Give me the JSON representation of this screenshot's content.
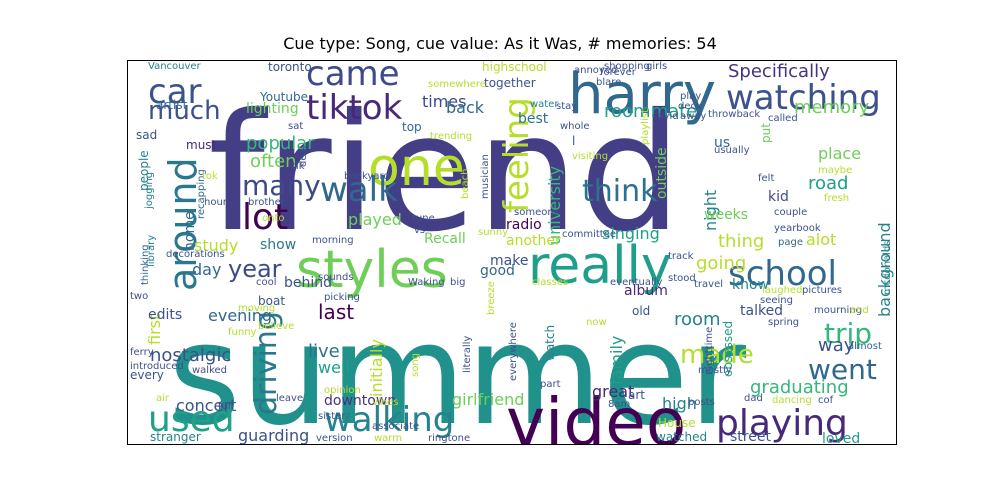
{
  "title": "Cue type: Song, cue value: As it Was, # memories: 54",
  "palette": {
    "dark_purple": "#440154",
    "indigo": "#3b528b",
    "slate_blue": "#433e85",
    "blue": "#31688e",
    "teal_blue": "#26828e",
    "teal": "#1f9e89",
    "green": "#35b779",
    "light_green": "#6ece58",
    "yellow_green": "#b5de2b",
    "yellow": "#fde725"
  },
  "words": [
    {
      "text": "friend",
      "color": "#433e85"
    },
    {
      "text": "summer",
      "color": "#21918c"
    },
    {
      "text": "harry",
      "color": "#31688e"
    },
    {
      "text": "video",
      "color": "#440154"
    },
    {
      "text": "styles",
      "color": "#6ece58"
    },
    {
      "text": "really",
      "color": "#1f9e89"
    },
    {
      "text": "one",
      "color": "#b5de2b"
    },
    {
      "text": "tiktok",
      "color": "#482878"
    },
    {
      "text": "came",
      "color": "#3e4a89"
    },
    {
      "text": "car",
      "color": "#3b528b"
    },
    {
      "text": "around",
      "color": "#2a788e"
    },
    {
      "text": "watching",
      "color": "#3b528b"
    },
    {
      "text": "school",
      "color": "#31688e"
    },
    {
      "text": "playing",
      "color": "#482878"
    },
    {
      "text": "walking",
      "color": "#26828e"
    },
    {
      "text": "used",
      "color": "#1fa187"
    },
    {
      "text": "lot",
      "color": "#440154"
    },
    {
      "text": "walk",
      "color": "#31688e"
    },
    {
      "text": "many",
      "color": "#3e4a89"
    },
    {
      "text": "much",
      "color": "#3b528b"
    },
    {
      "text": "feeling",
      "color": "#b5de2b"
    },
    {
      "text": "think",
      "color": "#2c728e"
    },
    {
      "text": "driving",
      "color": "#2a788e"
    },
    {
      "text": "year",
      "color": "#3e4a89"
    },
    {
      "text": "went",
      "color": "#31688e"
    },
    {
      "text": "made",
      "color": "#b5de2b"
    },
    {
      "text": "trip",
      "color": "#35b779"
    },
    {
      "text": "Specifically",
      "color": "#46327e"
    },
    {
      "text": "memory",
      "color": "#6ece58"
    },
    {
      "text": "roommate",
      "color": "#1f9e89"
    },
    {
      "text": "times",
      "color": "#3e4a89"
    },
    {
      "text": "back",
      "color": "#31688e"
    },
    {
      "text": "best",
      "color": "#2c728e"
    },
    {
      "text": "university",
      "color": "#35b779"
    },
    {
      "text": "outside",
      "color": "#6ece58"
    },
    {
      "text": "night",
      "color": "#26828e"
    },
    {
      "text": "weeks",
      "color": "#6ece58"
    },
    {
      "text": "popular",
      "color": "#35b779"
    },
    {
      "text": "often",
      "color": "#6ece58"
    },
    {
      "text": "played",
      "color": "#6ece58"
    },
    {
      "text": "study",
      "color": "#b5de2b"
    },
    {
      "text": "show",
      "color": "#2a788e"
    },
    {
      "text": "day",
      "color": "#31688e"
    },
    {
      "text": "last",
      "color": "#440154"
    },
    {
      "text": "behind",
      "color": "#3b528b"
    },
    {
      "text": "evening",
      "color": "#31688e"
    },
    {
      "text": "nostalgic",
      "color": "#3b528b"
    },
    {
      "text": "concert",
      "color": "#3b528b"
    },
    {
      "text": "live",
      "color": "#2c728e"
    },
    {
      "text": "well",
      "color": "#1f9e89"
    },
    {
      "text": "initially",
      "color": "#b5de2b"
    },
    {
      "text": "downtown",
      "color": "#46327e"
    },
    {
      "text": "guarding",
      "color": "#3b528b"
    },
    {
      "text": "girlfriend",
      "color": "#6ece58"
    },
    {
      "text": "family",
      "color": "#1f9e89"
    },
    {
      "text": "room",
      "color": "#26828e"
    },
    {
      "text": "album",
      "color": "#482878"
    },
    {
      "text": "going",
      "color": "#b5de2b"
    },
    {
      "text": "thing",
      "color": "#b5de2b"
    },
    {
      "text": "alot",
      "color": "#b5de2b"
    },
    {
      "text": "know",
      "color": "#26828e"
    },
    {
      "text": "talked",
      "color": "#3b528b"
    },
    {
      "text": "place",
      "color": "#6ece58"
    },
    {
      "text": "road",
      "color": "#1f9e89"
    },
    {
      "text": "kid",
      "color": "#3e4a89"
    },
    {
      "text": "way",
      "color": "#3b528b"
    },
    {
      "text": "graduating",
      "color": "#35b779"
    },
    {
      "text": "high",
      "color": "#26828e"
    },
    {
      "text": "great",
      "color": "#482878"
    },
    {
      "text": "street",
      "color": "#3b528b"
    },
    {
      "text": "loved",
      "color": "#1f9e89"
    },
    {
      "text": "background",
      "color": "#26828e"
    },
    {
      "text": "first",
      "color": "#b5de2b"
    },
    {
      "text": "edits",
      "color": "#3b528b"
    },
    {
      "text": "Recall",
      "color": "#6ece58"
    },
    {
      "text": "another",
      "color": "#b5de2b"
    },
    {
      "text": "singing",
      "color": "#1f9e89"
    },
    {
      "text": "make",
      "color": "#3b528b"
    },
    {
      "text": "good",
      "color": "#31688e"
    },
    {
      "text": "radio",
      "color": "#440154"
    },
    {
      "text": "home",
      "color": "#31688e"
    },
    {
      "text": "highschool",
      "color": "#b5de2b"
    },
    {
      "text": "together",
      "color": "#3b528b"
    },
    {
      "text": "toronto",
      "color": "#3b528b"
    },
    {
      "text": "artist",
      "color": "#31688e"
    },
    {
      "text": "lighting",
      "color": "#6ece58"
    },
    {
      "text": "Youtube",
      "color": "#31688e"
    },
    {
      "text": "must",
      "color": "#482878"
    },
    {
      "text": "sad",
      "color": "#3b528b"
    },
    {
      "text": "top",
      "color": "#31688e"
    },
    {
      "text": "us",
      "color": "#31688e"
    },
    {
      "text": "put",
      "color": "#6ece58"
    },
    {
      "text": "couple",
      "color": "#3b528b"
    },
    {
      "text": "yearbook",
      "color": "#3b528b"
    },
    {
      "text": "mourning",
      "color": "#3b528b"
    },
    {
      "text": "almost",
      "color": "#31688e"
    },
    {
      "text": "people",
      "color": "#26828e"
    },
    {
      "text": "recapping",
      "color": "#31688e"
    },
    {
      "text": "jogging",
      "color": "#26828e"
    },
    {
      "text": "library",
      "color": "#26828e"
    },
    {
      "text": "thinking",
      "color": "#31688e"
    },
    {
      "text": "decorations",
      "color": "#3b528b"
    },
    {
      "text": "cool",
      "color": "#3b528b"
    },
    {
      "text": "picking",
      "color": "#3b528b"
    },
    {
      "text": "sounds",
      "color": "#3b528b"
    },
    {
      "text": "Waking",
      "color": "#3b528b"
    },
    {
      "text": "boat",
      "color": "#3b528b"
    },
    {
      "text": "funny",
      "color": "#b5de2b"
    },
    {
      "text": "every",
      "color": "#3b528b"
    },
    {
      "text": "introduced",
      "color": "#3b528b"
    },
    {
      "text": "walked",
      "color": "#3b528b"
    },
    {
      "text": "stranger",
      "color": "#26828e"
    },
    {
      "text": "version",
      "color": "#3b528b"
    },
    {
      "text": "ringtone",
      "color": "#3b528b"
    },
    {
      "text": "House",
      "color": "#b5de2b"
    },
    {
      "text": "watched",
      "color": "#26828e"
    },
    {
      "text": "Vancouver",
      "color": "#26828e"
    },
    {
      "text": "morning",
      "color": "#3b528b"
    },
    {
      "text": "committee",
      "color": "#3b528b"
    },
    {
      "text": "eventually",
      "color": "#3b528b"
    },
    {
      "text": "classes",
      "color": "#b5de2b"
    },
    {
      "text": "tune",
      "color": "#3b528b"
    },
    {
      "text": "vs",
      "color": "#3b528b"
    },
    {
      "text": "someone",
      "color": "#3b528b"
    },
    {
      "text": "sunny",
      "color": "#b5de2b"
    },
    {
      "text": "travel",
      "color": "#3b528b"
    },
    {
      "text": "stood",
      "color": "#3b528b"
    },
    {
      "text": "track",
      "color": "#3b528b"
    },
    {
      "text": "page",
      "color": "#31688e"
    },
    {
      "text": "pictures",
      "color": "#3b528b"
    },
    {
      "text": "seeing",
      "color": "#3b528b"
    },
    {
      "text": "laughed",
      "color": "#b5de2b"
    },
    {
      "text": "spring",
      "color": "#3b528b"
    },
    {
      "text": "obsessed",
      "color": "#1f9e89"
    },
    {
      "text": "nighttime",
      "color": "#3b528b"
    },
    {
      "text": "mostly",
      "color": "#3b528b"
    },
    {
      "text": "part",
      "color": "#3b528b"
    },
    {
      "text": "literally",
      "color": "#3b528b"
    },
    {
      "text": "everywhere",
      "color": "#3b528b"
    },
    {
      "text": "breeze",
      "color": "#b5de2b"
    },
    {
      "text": "old",
      "color": "#3b528b"
    },
    {
      "text": "watch",
      "color": "#26828e"
    },
    {
      "text": "now",
      "color": "#b5de2b"
    },
    {
      "text": "art",
      "color": "#3b528b"
    },
    {
      "text": "8am",
      "color": "#3b528b"
    },
    {
      "text": "posts",
      "color": "#3b528b"
    },
    {
      "text": "dad",
      "color": "#3b528b"
    },
    {
      "text": "dancing",
      "color": "#b5de2b"
    },
    {
      "text": "cof",
      "color": "#3b528b"
    },
    {
      "text": "mcdonalds",
      "color": "#26828e"
    },
    {
      "text": "end",
      "color": "#b5de2b"
    },
    {
      "text": "sister",
      "color": "#3b528b"
    },
    {
      "text": "opinion",
      "color": "#b5de2b"
    },
    {
      "text": "vibes",
      "color": "#b5de2b"
    },
    {
      "text": "warm",
      "color": "#b5de2b"
    },
    {
      "text": "associate",
      "color": "#3b528b"
    },
    {
      "text": "leave",
      "color": "#3b528b"
    },
    {
      "text": "air",
      "color": "#b5de2b"
    },
    {
      "text": "fun",
      "color": "#3b528b"
    },
    {
      "text": "ferry",
      "color": "#3b528b"
    },
    {
      "text": "two",
      "color": "#3b528b"
    },
    {
      "text": "moving",
      "color": "#b5de2b"
    },
    {
      "text": "believe",
      "color": "#b5de2b"
    },
    {
      "text": "big",
      "color": "#3b528b"
    },
    {
      "text": "song",
      "color": "#b5de2b"
    },
    {
      "text": "hour",
      "color": "#3b528b"
    },
    {
      "text": "onto",
      "color": "#b5de2b"
    },
    {
      "text": "tok",
      "color": "#b5de2b"
    },
    {
      "text": "brother",
      "color": "#3b528b"
    },
    {
      "text": "backyard",
      "color": "#3b528b"
    },
    {
      "text": "musician",
      "color": "#3b528b"
    },
    {
      "text": "beach",
      "color": "#b5de2b"
    },
    {
      "text": "sat",
      "color": "#3b528b"
    },
    {
      "text": "deal",
      "color": "#3b528b"
    },
    {
      "text": "tik",
      "color": "#3b528b"
    },
    {
      "text": "trending",
      "color": "#b5de2b"
    },
    {
      "text": "somewhere",
      "color": "#b5de2b"
    },
    {
      "text": "forever",
      "color": "#3b528b"
    },
    {
      "text": "blare",
      "color": "#3b528b"
    },
    {
      "text": "annoyed",
      "color": "#3b528b"
    },
    {
      "text": "shopping",
      "color": "#3b528b"
    },
    {
      "text": "girls",
      "color": "#3b528b"
    },
    {
      "text": "water",
      "color": "#26828e"
    },
    {
      "text": "stay",
      "color": "#3b528b"
    },
    {
      "text": "whole",
      "color": "#3b528b"
    },
    {
      "text": "play",
      "color": "#3b528b"
    },
    {
      "text": "deck",
      "color": "#3b528b"
    },
    {
      "text": "covid",
      "color": "#3b528b"
    },
    {
      "text": "throwback",
      "color": "#3b528b"
    },
    {
      "text": "called",
      "color": "#3b528b"
    },
    {
      "text": "away",
      "color": "#3b528b"
    },
    {
      "text": "playlist",
      "color": "#b5de2b"
    },
    {
      "text": "visiting",
      "color": "#b5de2b"
    },
    {
      "text": "usually",
      "color": "#3b528b"
    },
    {
      "text": "felt",
      "color": "#3b528b"
    },
    {
      "text": "maybe",
      "color": "#b5de2b"
    },
    {
      "text": "fresh",
      "color": "#b5de2b"
    },
    {
      "text": "l",
      "color": "#3b528b"
    }
  ]
}
